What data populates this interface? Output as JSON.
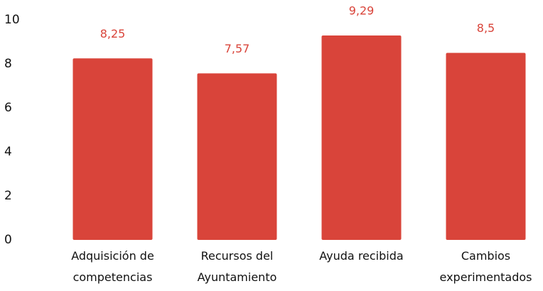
{
  "chart_data": {
    "type": "bar",
    "categories": [
      "Adquisición de competencias",
      "Recursos del Ayuntamiento",
      "Ayuda recibida",
      "Cambios experimentados"
    ],
    "values": [
      8.25,
      7.57,
      9.29,
      8.5
    ],
    "value_labels": [
      "8,25",
      "7,57",
      "9,29",
      "8,5"
    ],
    "color": "#d9443a",
    "ylim": [
      0,
      10
    ],
    "yticks": [
      0,
      2,
      4,
      6,
      8,
      10
    ],
    "grid": false
  }
}
